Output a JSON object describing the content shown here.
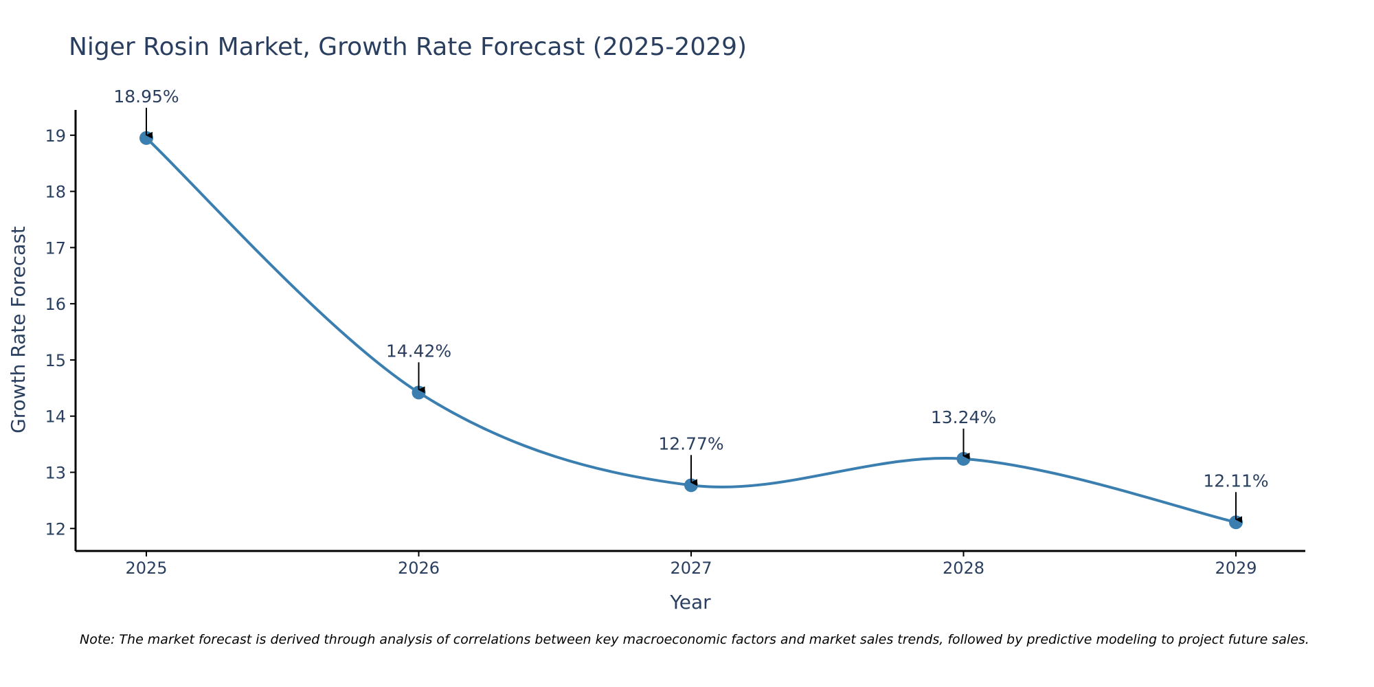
{
  "colors": {
    "series": "#3b7fb0",
    "axis": "#000000",
    "text": "#2a3f5f"
  },
  "note": "Note: The market forecast is derived through analysis of correlations between key macroeconomic factors and market sales trends, followed by predictive modeling to project future sales.",
  "chart_data": {
    "type": "line",
    "title": "Niger Rosin Market, Growth Rate Forecast (2025-2029)",
    "xlabel": "Year",
    "ylabel": "Growth Rate Forecast",
    "categories": [
      "2025",
      "2026",
      "2027",
      "2028",
      "2029"
    ],
    "values": [
      18.95,
      14.42,
      12.77,
      13.24,
      12.11
    ],
    "data_labels": [
      "18.95%",
      "14.42%",
      "12.77%",
      "13.24%",
      "12.11%"
    ],
    "yticks": [
      12,
      13,
      14,
      15,
      16,
      17,
      18,
      19
    ],
    "ylim": [
      11.6,
      19.45
    ],
    "grid": false,
    "line_shape": "spline"
  }
}
